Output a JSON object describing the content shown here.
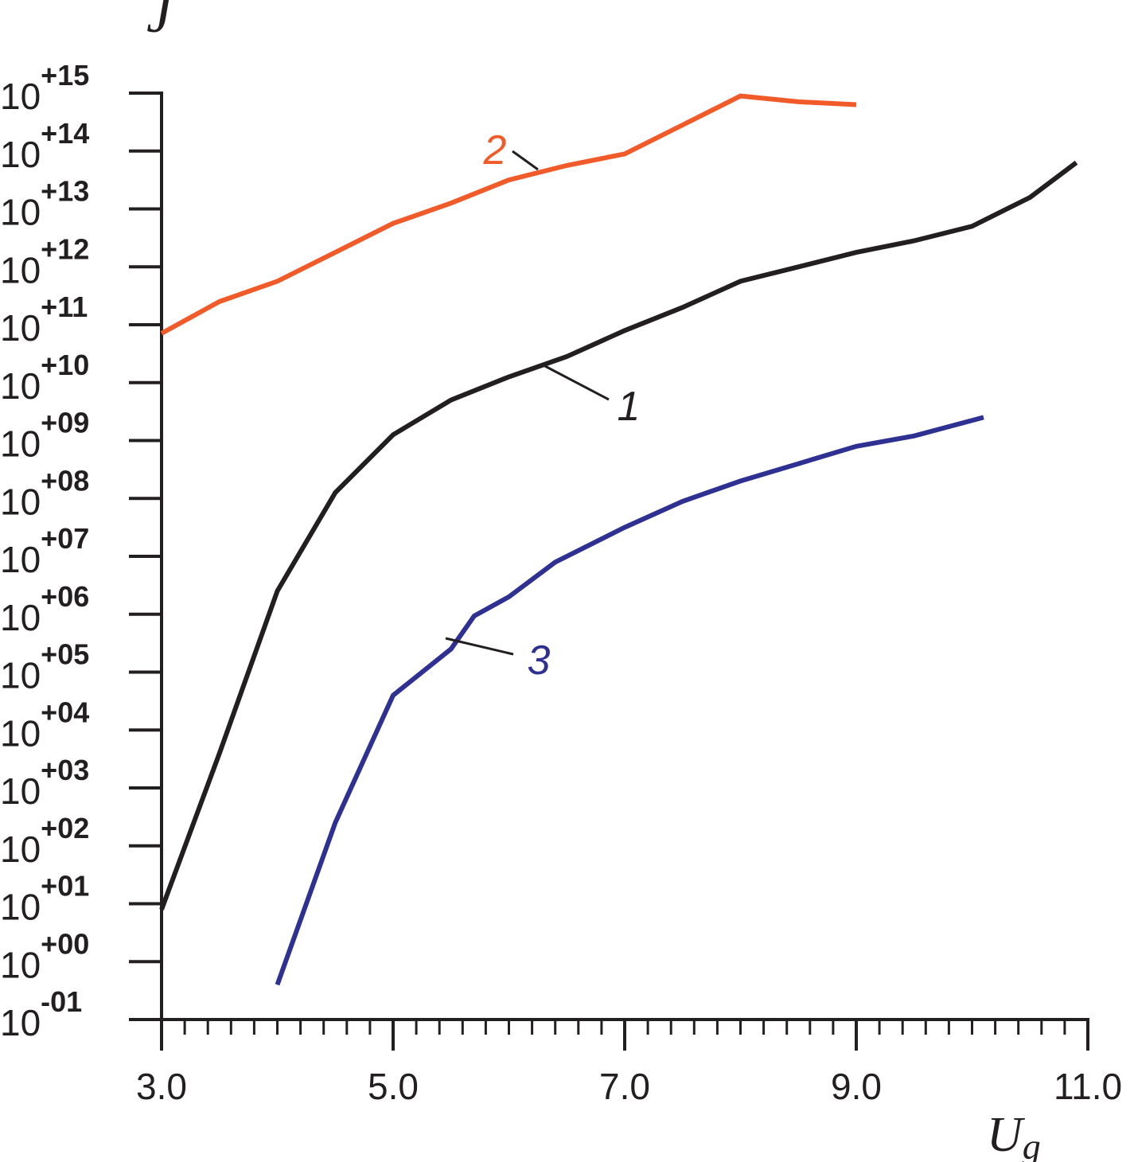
{
  "chart_data": {
    "type": "line",
    "xlabel": "U",
    "xlabel_sub": "g",
    "ylabel": "J",
    "xlim": [
      3.0,
      11.0
    ],
    "ylim_log10": [
      -1,
      15
    ],
    "yscale": "log",
    "x_tick_labels": [
      "3.0",
      "5.0",
      "7.0",
      "9.0",
      "11.0"
    ],
    "x_ticks": [
      3.0,
      5.0,
      7.0,
      9.0,
      11.0
    ],
    "x_minor_step": 0.2,
    "y_tick_labels": [
      {
        "base": "10",
        "exp": "-01"
      },
      {
        "base": "10",
        "exp": "+00"
      },
      {
        "base": "10",
        "exp": "+01"
      },
      {
        "base": "10",
        "exp": "+02"
      },
      {
        "base": "10",
        "exp": "+03"
      },
      {
        "base": "10",
        "exp": "+04"
      },
      {
        "base": "10",
        "exp": "+05"
      },
      {
        "base": "10",
        "exp": "+06"
      },
      {
        "base": "10",
        "exp": "+07"
      },
      {
        "base": "10",
        "exp": "+08"
      },
      {
        "base": "10",
        "exp": "+09"
      },
      {
        "base": "10",
        "exp": "+10"
      },
      {
        "base": "10",
        "exp": "+11"
      },
      {
        "base": "10",
        "exp": "+12"
      },
      {
        "base": "10",
        "exp": "+13"
      },
      {
        "base": "10",
        "exp": "+14"
      },
      {
        "base": "10",
        "exp": "+15"
      }
    ],
    "grid": false,
    "series": [
      {
        "name": "1",
        "color": "#231f20",
        "x": [
          3.0,
          3.5,
          4.0,
          4.5,
          5.0,
          5.5,
          6.0,
          6.5,
          7.0,
          7.5,
          8.0,
          8.5,
          9.0,
          9.5,
          10.0,
          10.5,
          10.9
        ],
        "log10_y": [
          0.9,
          3.6,
          6.4,
          8.1,
          9.1,
          9.7,
          10.1,
          10.45,
          10.9,
          11.3,
          11.75,
          12.0,
          12.25,
          12.45,
          12.7,
          13.2,
          13.8
        ]
      },
      {
        "name": "2",
        "color": "#f15a29",
        "x": [
          3.0,
          3.5,
          4.0,
          4.5,
          5.0,
          5.5,
          6.0,
          6.5,
          7.0,
          7.5,
          8.0,
          8.5,
          9.0
        ],
        "log10_y": [
          10.85,
          11.4,
          11.75,
          12.25,
          12.75,
          13.1,
          13.5,
          13.75,
          13.95,
          14.45,
          14.95,
          14.85,
          14.8
        ]
      },
      {
        "name": "3",
        "color": "#2e3192",
        "x": [
          4.0,
          4.5,
          5.0,
          5.5,
          5.7,
          6.0,
          6.4,
          7.0,
          7.5,
          8.0,
          8.5,
          9.0,
          9.5,
          10.1
        ],
        "log10_y": [
          -0.4,
          2.4,
          4.6,
          5.4,
          5.97,
          6.3,
          6.9,
          7.5,
          7.95,
          8.3,
          8.6,
          8.9,
          9.08,
          9.4
        ]
      }
    ]
  }
}
